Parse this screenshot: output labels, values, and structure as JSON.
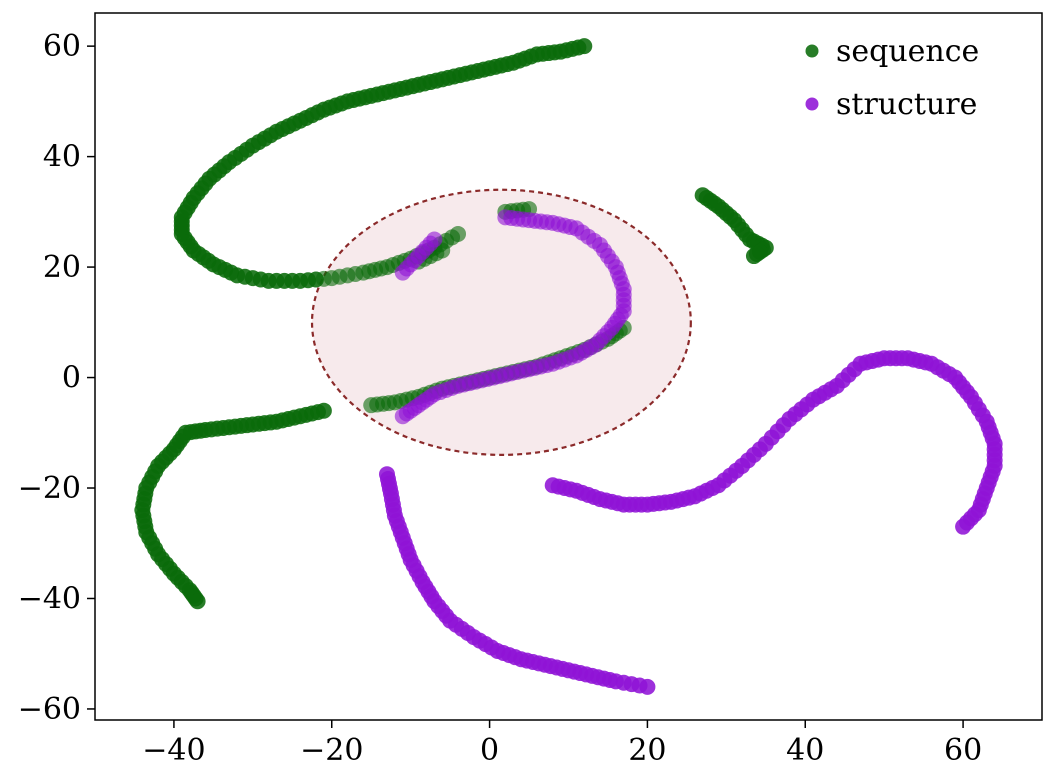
{
  "chart_data": {
    "type": "scatter",
    "xlim": [
      -50,
      70
    ],
    "ylim": [
      -62,
      66
    ],
    "x_ticks": [
      -40,
      -20,
      0,
      20,
      40,
      60
    ],
    "y_ticks": [
      -60,
      -40,
      -20,
      0,
      20,
      40,
      60
    ],
    "x_tick_labels": [
      "−40",
      "−20",
      "0",
      "20",
      "40",
      "60"
    ],
    "y_tick_labels": [
      "−60",
      "−40",
      "−20",
      "0",
      "20",
      "40",
      "60"
    ],
    "grid": false,
    "legend_position": "top-right",
    "series": [
      {
        "name": "sequence",
        "color": "#0a6b0a",
        "points": [
          [
            12,
            60
          ],
          [
            9,
            59
          ],
          [
            6,
            58.5
          ],
          [
            3,
            57
          ],
          [
            0,
            56
          ],
          [
            -3,
            55
          ],
          [
            -6,
            54
          ],
          [
            -9,
            53
          ],
          [
            -12,
            52
          ],
          [
            -15,
            51
          ],
          [
            -18,
            50
          ],
          [
            -21,
            48.5
          ],
          [
            -24,
            46.5
          ],
          [
            -27,
            44.5
          ],
          [
            -30,
            42
          ],
          [
            -33,
            39
          ],
          [
            -35.5,
            36
          ],
          [
            -37.5,
            32.5
          ],
          [
            -39,
            29
          ],
          [
            -39,
            26
          ],
          [
            -37.5,
            23
          ],
          [
            -35,
            20.5
          ],
          [
            -32,
            18.5
          ],
          [
            -28,
            17.5
          ],
          [
            -24,
            17.5
          ],
          [
            -20,
            18
          ],
          [
            -16,
            19
          ],
          [
            -13,
            20
          ],
          [
            -10,
            21.5
          ],
          [
            -7,
            23.5
          ],
          [
            -4,
            26
          ],
          [
            27,
            33
          ],
          [
            29,
            31
          ],
          [
            31,
            28.5
          ],
          [
            33,
            25
          ],
          [
            35,
            23.5
          ],
          [
            33.5,
            22
          ],
          [
            -21,
            -6
          ],
          [
            -24,
            -7
          ],
          [
            -27,
            -8
          ],
          [
            -30,
            -8.5
          ],
          [
            -33,
            -9
          ],
          [
            -36,
            -9.5
          ],
          [
            -38.5,
            -10
          ],
          [
            -40,
            -13
          ],
          [
            -42,
            -16
          ],
          [
            -43.5,
            -20
          ],
          [
            -44,
            -24
          ],
          [
            -43.5,
            -28
          ],
          [
            -42,
            -32
          ],
          [
            -40,
            -35.5
          ],
          [
            -38,
            -38.5
          ],
          [
            -37,
            -40.5
          ],
          [
            -15,
            -5
          ],
          [
            -12,
            -4.5
          ],
          [
            -9,
            -3.5
          ],
          [
            -6,
            -2
          ],
          [
            -3,
            -1
          ],
          [
            0,
            0
          ],
          [
            3,
            1
          ],
          [
            6,
            2
          ],
          [
            9,
            3.5
          ],
          [
            12,
            5
          ],
          [
            15,
            7
          ],
          [
            17,
            9
          ],
          [
            -6,
            23
          ],
          [
            -9,
            21
          ],
          [
            2,
            30
          ],
          [
            5,
            30.5
          ]
        ]
      },
      {
        "name": "structure",
        "color": "#9013d6",
        "points": [
          [
            -7,
            25
          ],
          [
            -9,
            22
          ],
          [
            -11,
            19
          ],
          [
            2,
            29
          ],
          [
            5,
            28.5
          ],
          [
            8,
            28
          ],
          [
            11,
            27
          ],
          [
            14,
            24
          ],
          [
            16,
            20
          ],
          [
            17,
            16
          ],
          [
            17,
            12
          ],
          [
            15.5,
            9
          ],
          [
            13.5,
            6
          ],
          [
            11,
            4
          ],
          [
            8,
            2.5
          ],
          [
            5,
            1.5
          ],
          [
            2,
            0.5
          ],
          [
            -1,
            -0.5
          ],
          [
            -4,
            -1.5
          ],
          [
            -7,
            -3
          ],
          [
            -9,
            -5
          ],
          [
            -11,
            -7
          ],
          [
            -13,
            -17.5
          ],
          [
            -12.5,
            -21
          ],
          [
            -12,
            -25
          ],
          [
            -11,
            -29
          ],
          [
            -10,
            -33
          ],
          [
            -8.5,
            -37
          ],
          [
            -7,
            -40.5
          ],
          [
            -5,
            -44
          ],
          [
            -2,
            -47
          ],
          [
            1,
            -49.5
          ],
          [
            4,
            -51
          ],
          [
            7,
            -52
          ],
          [
            10,
            -53
          ],
          [
            13,
            -54
          ],
          [
            16,
            -55
          ],
          [
            20,
            -56
          ],
          [
            8,
            -19.5
          ],
          [
            11,
            -20.5
          ],
          [
            14,
            -22
          ],
          [
            17,
            -23
          ],
          [
            20,
            -23
          ],
          [
            23,
            -22.5
          ],
          [
            26,
            -21.5
          ],
          [
            29,
            -19.5
          ],
          [
            32,
            -16
          ],
          [
            35,
            -12
          ],
          [
            38,
            -7.5
          ],
          [
            41,
            -4
          ],
          [
            44,
            -1.5
          ],
          [
            47,
            2.5
          ],
          [
            50,
            3.5
          ],
          [
            53,
            3.5
          ],
          [
            56,
            2.5
          ],
          [
            59,
            0
          ],
          [
            61,
            -3.5
          ],
          [
            63,
            -8
          ],
          [
            64,
            -12
          ],
          [
            64,
            -16
          ],
          [
            63,
            -20
          ],
          [
            62,
            -24
          ],
          [
            60,
            -27
          ]
        ]
      }
    ],
    "annotations": [
      {
        "shape": "circle",
        "center": [
          1.5,
          10
        ],
        "radius": 24,
        "fill": "#f7eaec",
        "stroke": "#8b2a2a",
        "style": "dashed"
      }
    ]
  }
}
